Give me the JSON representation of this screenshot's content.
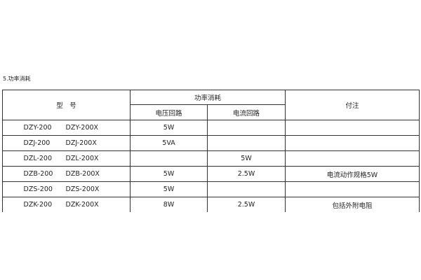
{
  "section_title": "5.功率消耗",
  "headers": {
    "model": "型　号",
    "power": "功率消耗",
    "voltage": "电压回路",
    "current": "电流回路",
    "note": "付注"
  },
  "rows": [
    {
      "model_a": "DZY-200",
      "model_b": "DZY-200X",
      "voltage": "5W",
      "current": "",
      "note": ""
    },
    {
      "model_a": "DZJ-200",
      "model_b": "DZJ-200X",
      "voltage": "5VA",
      "current": "",
      "note": ""
    },
    {
      "model_a": "DZL-200",
      "model_b": "DZL-200X",
      "voltage": "",
      "current": "5W",
      "note": ""
    },
    {
      "model_a": "DZB-200",
      "model_b": "DZB-200X",
      "voltage": "5W",
      "current": "2.5W",
      "note": "电流动作规格5W"
    },
    {
      "model_a": "DZS-200",
      "model_b": "DZS-200X",
      "voltage": "5W",
      "current": "",
      "note": ""
    },
    {
      "model_a": "DZK-200",
      "model_b": "DZK-200X",
      "voltage": "8W",
      "current": "2.5W",
      "note": "包括外附电阻"
    }
  ]
}
